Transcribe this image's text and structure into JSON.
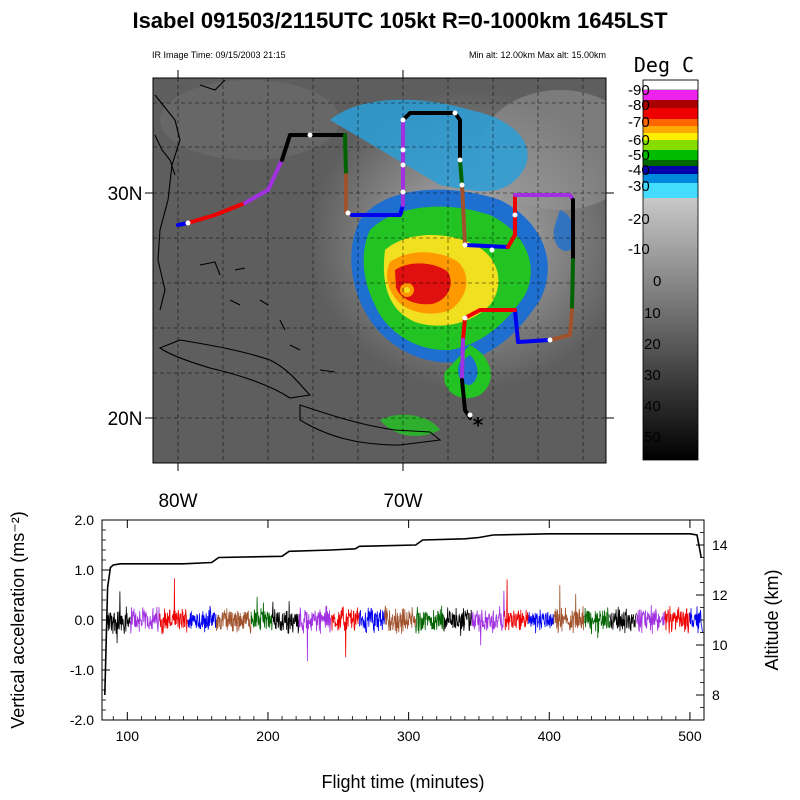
{
  "title": "Isabel 091503/2115UTC 105kt  R=0-1000km 1645LST",
  "ir_time": "IR Image Time: 09/15/2003 21:15",
  "alt_range": "Min alt: 12.00km  Max alt: 15.00km",
  "colorbar": {
    "title": "Deg C",
    "labels": [
      "-90",
      "-80",
      "-70",
      "-60",
      "-50",
      "-40",
      "-30",
      "-20",
      "-10",
      "0",
      "10",
      "20",
      "30",
      "40",
      "50"
    ]
  },
  "map": {
    "lat_labels": [
      "30N",
      "20N"
    ],
    "lon_labels": [
      "80W",
      "70W"
    ]
  },
  "chart_data": {
    "type": "line",
    "xlabel": "Flight time (minutes)",
    "ylabel_left": "Vertical acceleration (ms⁻²)",
    "ylabel_right": "Altitude (km)",
    "xlim": [
      82,
      510
    ],
    "xticks": [
      100,
      200,
      300,
      400,
      500
    ],
    "ylim_left": [
      -2.0,
      2.0
    ],
    "yticks_left": [
      "2.0",
      "1.0",
      "0.0",
      "-1.0",
      "-2.0"
    ],
    "ylim_right": [
      7.0,
      15.0
    ],
    "yticks_right": [
      "14",
      "12",
      "10",
      "8"
    ],
    "altitude": {
      "t": [
        84,
        86,
        88,
        90,
        95,
        140,
        160,
        165,
        210,
        215,
        245,
        262,
        265,
        305,
        310,
        340,
        350,
        360,
        400,
        500,
        505,
        508
      ],
      "alt": [
        8.0,
        12.3,
        13.1,
        13.2,
        13.25,
        13.25,
        13.3,
        13.5,
        13.55,
        13.75,
        13.8,
        13.85,
        13.95,
        14.0,
        14.2,
        14.25,
        14.3,
        14.4,
        14.45,
        14.45,
        14.4,
        13.5
      ]
    },
    "accel_segments": [
      {
        "t0": 85,
        "t1": 102,
        "color": "#000000"
      },
      {
        "t0": 102,
        "t1": 123,
        "color": "#a030e0"
      },
      {
        "t0": 123,
        "t1": 143,
        "color": "#ee0000"
      },
      {
        "t0": 143,
        "t1": 163,
        "color": "#0000ee"
      },
      {
        "t0": 163,
        "t1": 188,
        "color": "#a0522d"
      },
      {
        "t0": 188,
        "t1": 203,
        "color": "#006400"
      },
      {
        "t0": 203,
        "t1": 222,
        "color": "#000000"
      },
      {
        "t0": 222,
        "t1": 245,
        "color": "#a030e0"
      },
      {
        "t0": 245,
        "t1": 265,
        "color": "#ee0000"
      },
      {
        "t0": 265,
        "t1": 283,
        "color": "#0000ee"
      },
      {
        "t0": 283,
        "t1": 305,
        "color": "#a0522d"
      },
      {
        "t0": 305,
        "t1": 325,
        "color": "#006400"
      },
      {
        "t0": 325,
        "t1": 345,
        "color": "#000000"
      },
      {
        "t0": 345,
        "t1": 368,
        "color": "#a030e0"
      },
      {
        "t0": 368,
        "t1": 385,
        "color": "#ee0000"
      },
      {
        "t0": 385,
        "t1": 403,
        "color": "#0000ee"
      },
      {
        "t0": 403,
        "t1": 425,
        "color": "#a0522d"
      },
      {
        "t0": 425,
        "t1": 443,
        "color": "#006400"
      },
      {
        "t0": 443,
        "t1": 462,
        "color": "#000000"
      },
      {
        "t0": 462,
        "t1": 482,
        "color": "#a030e0"
      },
      {
        "t0": 482,
        "t1": 500,
        "color": "#ee0000"
      },
      {
        "t0": 500,
        "t1": 509,
        "color": "#0000ee"
      }
    ]
  }
}
